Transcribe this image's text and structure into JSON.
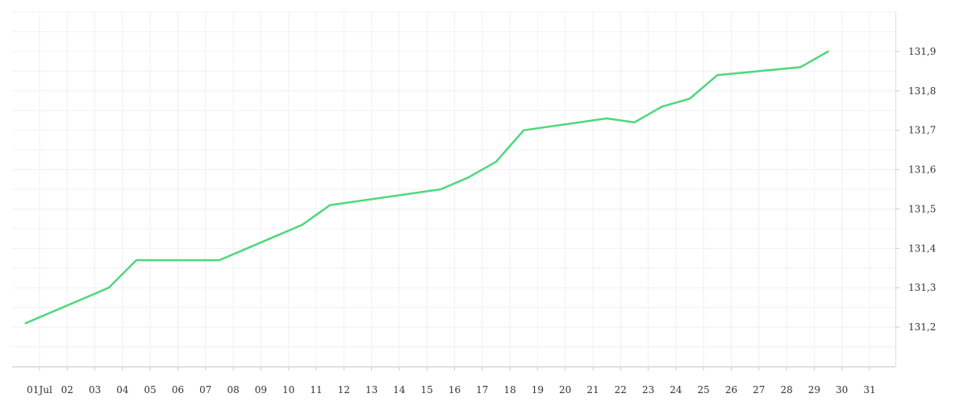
{
  "chart_data": {
    "type": "line",
    "title": "",
    "xlabel": "",
    "ylabel": "",
    "x_ticks": [
      "01Jul",
      "02",
      "03",
      "04",
      "05",
      "06",
      "07",
      "08",
      "09",
      "10",
      "11",
      "12",
      "13",
      "14",
      "15",
      "16",
      "17",
      "18",
      "19",
      "20",
      "21",
      "22",
      "23",
      "24",
      "25",
      "26",
      "27",
      "28",
      "29",
      "30",
      "31"
    ],
    "y_ticks": [
      "131,2",
      "131,3",
      "131,4",
      "131,5",
      "131,6",
      "131,7",
      "131,8",
      "131,9"
    ],
    "ylim": [
      131.1,
      132.0
    ],
    "grid": true,
    "legend": "none",
    "series": [
      {
        "color": "#4cd97b",
        "points": [
          {
            "x": "2024-06-30T12:00",
            "y": 131.21
          },
          {
            "x": "2024-07-03T12:00",
            "y": 131.3
          },
          {
            "x": "2024-07-04T12:00",
            "y": 131.37
          },
          {
            "x": "2024-07-07T12:00",
            "y": 131.37
          },
          {
            "x": "2024-07-08T12:00",
            "y": 131.4
          },
          {
            "x": "2024-07-09T12:00",
            "y": 131.43
          },
          {
            "x": "2024-07-10T12:00",
            "y": 131.46
          },
          {
            "x": "2024-07-11T12:00",
            "y": 131.51
          },
          {
            "x": "2024-07-15T12:00",
            "y": 131.55
          },
          {
            "x": "2024-07-16T12:00",
            "y": 131.58
          },
          {
            "x": "2024-07-17T12:00",
            "y": 131.62
          },
          {
            "x": "2024-07-18T12:00",
            "y": 131.7
          },
          {
            "x": "2024-07-21T12:00",
            "y": 131.73
          },
          {
            "x": "2024-07-22T12:00",
            "y": 131.72
          },
          {
            "x": "2024-07-23T12:00",
            "y": 131.76
          },
          {
            "x": "2024-07-24T12:00",
            "y": 131.78
          },
          {
            "x": "2024-07-25T12:00",
            "y": 131.84
          },
          {
            "x": "2024-07-28T12:00",
            "y": 131.86
          },
          {
            "x": "2024-07-29T12:00",
            "y": 131.9
          }
        ]
      }
    ]
  }
}
